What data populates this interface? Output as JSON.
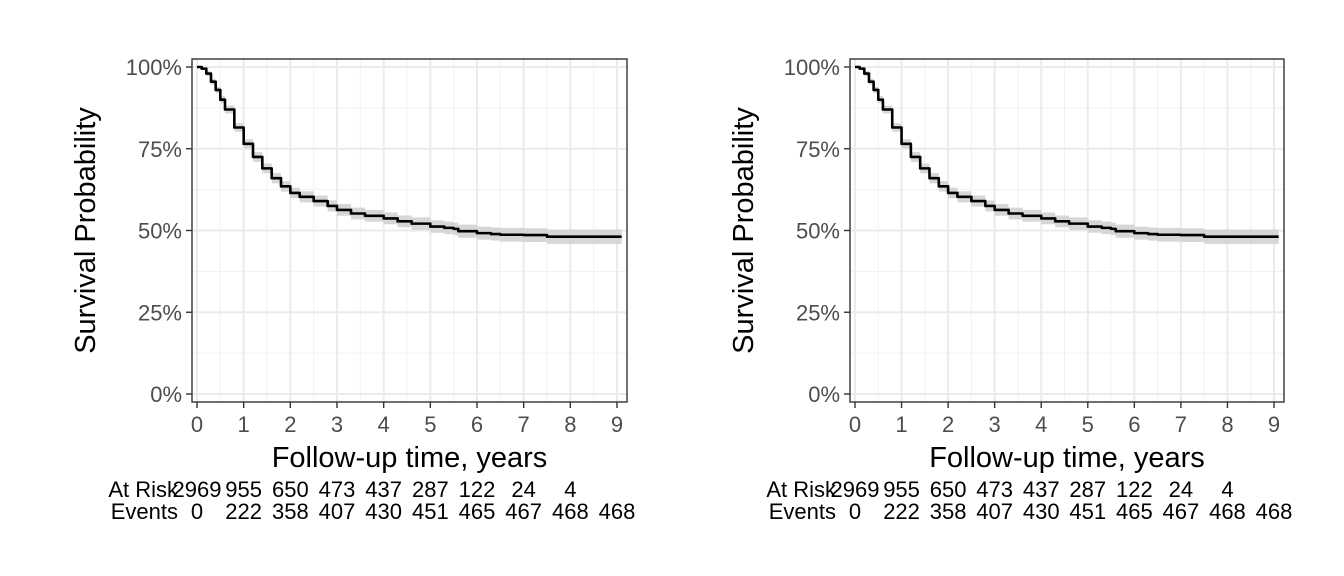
{
  "chart_data": [
    {
      "type": "line",
      "title": "",
      "xlabel": "Follow-up time, years",
      "ylabel": "Survival Probability",
      "xlim": [
        0,
        9
      ],
      "ylim": [
        0,
        1
      ],
      "x_ticks": [
        "0",
        "1",
        "2",
        "3",
        "4",
        "5",
        "6",
        "7",
        "8",
        "9"
      ],
      "y_ticks": [
        "0%",
        "25%",
        "50%",
        "75%",
        "100%"
      ],
      "grid": true,
      "confidence_band": true,
      "series": [
        {
          "x": [
            0,
            0.1,
            0.2,
            0.3,
            0.4,
            0.5,
            0.6,
            0.8,
            1.0,
            1.2,
            1.4,
            1.6,
            1.8,
            2.0,
            2.2,
            2.5,
            2.8,
            3.0,
            3.3,
            3.6,
            4.0,
            4.3,
            4.6,
            5.0,
            5.3,
            5.5,
            5.6,
            6.0,
            6.3,
            6.5,
            7.0,
            7.4,
            7.5,
            8.0,
            8.5,
            9.0,
            9.1
          ],
          "y": [
            1.0,
            0.995,
            0.98,
            0.955,
            0.93,
            0.9,
            0.87,
            0.815,
            0.765,
            0.725,
            0.69,
            0.66,
            0.635,
            0.615,
            0.603,
            0.59,
            0.575,
            0.563,
            0.552,
            0.545,
            0.537,
            0.528,
            0.521,
            0.512,
            0.508,
            0.505,
            0.498,
            0.492,
            0.489,
            0.487,
            0.486,
            0.486,
            0.481,
            0.481,
            0.481,
            0.481,
            0.481
          ],
          "ci_halfwidth": [
            0.0,
            0.004,
            0.007,
            0.009,
            0.01,
            0.011,
            0.012,
            0.013,
            0.014,
            0.015,
            0.015,
            0.016,
            0.016,
            0.016,
            0.017,
            0.017,
            0.017,
            0.018,
            0.018,
            0.018,
            0.018,
            0.018,
            0.019,
            0.019,
            0.019,
            0.019,
            0.02,
            0.02,
            0.02,
            0.021,
            0.021,
            0.021,
            0.022,
            0.022,
            0.022,
            0.022,
            0.022
          ],
          "color": "#000000"
        }
      ],
      "risk_table": {
        "at_risk_label": "At Risk",
        "events_label": "Events",
        "times": [
          0,
          1,
          2,
          3,
          4,
          5,
          6,
          7,
          8,
          9
        ],
        "at_risk": [
          "2969",
          "955",
          "650",
          "473",
          "437",
          "287",
          "122",
          "24",
          "4",
          ""
        ],
        "events": [
          "0",
          "222",
          "358",
          "407",
          "430",
          "451",
          "465",
          "467",
          "468",
          "468"
        ]
      }
    },
    {
      "type": "line",
      "title": "",
      "xlabel": "Follow-up time, years",
      "ylabel": "Survival Probability",
      "xlim": [
        0,
        9
      ],
      "ylim": [
        0,
        1
      ],
      "x_ticks": [
        "0",
        "1",
        "2",
        "3",
        "4",
        "5",
        "6",
        "7",
        "8",
        "9"
      ],
      "y_ticks": [
        "0%",
        "25%",
        "50%",
        "75%",
        "100%"
      ],
      "grid": true,
      "confidence_band": true,
      "series": [
        {
          "x": [
            0,
            0.1,
            0.2,
            0.3,
            0.4,
            0.5,
            0.6,
            0.8,
            1.0,
            1.2,
            1.4,
            1.6,
            1.8,
            2.0,
            2.2,
            2.5,
            2.8,
            3.0,
            3.3,
            3.6,
            4.0,
            4.3,
            4.6,
            5.0,
            5.3,
            5.5,
            5.6,
            6.0,
            6.3,
            6.5,
            7.0,
            7.4,
            7.5,
            8.0,
            8.5,
            9.0,
            9.1
          ],
          "y": [
            1.0,
            0.995,
            0.98,
            0.955,
            0.93,
            0.9,
            0.87,
            0.815,
            0.765,
            0.725,
            0.69,
            0.66,
            0.635,
            0.615,
            0.603,
            0.59,
            0.575,
            0.563,
            0.552,
            0.545,
            0.537,
            0.528,
            0.521,
            0.512,
            0.508,
            0.505,
            0.498,
            0.492,
            0.489,
            0.487,
            0.486,
            0.486,
            0.481,
            0.481,
            0.481,
            0.481,
            0.481
          ],
          "ci_halfwidth": [
            0.0,
            0.004,
            0.007,
            0.009,
            0.01,
            0.011,
            0.012,
            0.013,
            0.014,
            0.015,
            0.015,
            0.016,
            0.016,
            0.016,
            0.017,
            0.017,
            0.017,
            0.018,
            0.018,
            0.018,
            0.018,
            0.018,
            0.019,
            0.019,
            0.019,
            0.019,
            0.02,
            0.02,
            0.02,
            0.021,
            0.021,
            0.021,
            0.022,
            0.022,
            0.022,
            0.022,
            0.022
          ],
          "color": "#000000"
        }
      ],
      "risk_table": {
        "at_risk_label": "At Risk",
        "events_label": "Events",
        "times": [
          0,
          1,
          2,
          3,
          4,
          5,
          6,
          7,
          8,
          9
        ],
        "at_risk": [
          "2969",
          "955",
          "650",
          "473",
          "437",
          "287",
          "122",
          "24",
          "4",
          ""
        ],
        "events": [
          "0",
          "222",
          "358",
          "407",
          "430",
          "451",
          "465",
          "467",
          "468",
          "468"
        ]
      }
    }
  ]
}
